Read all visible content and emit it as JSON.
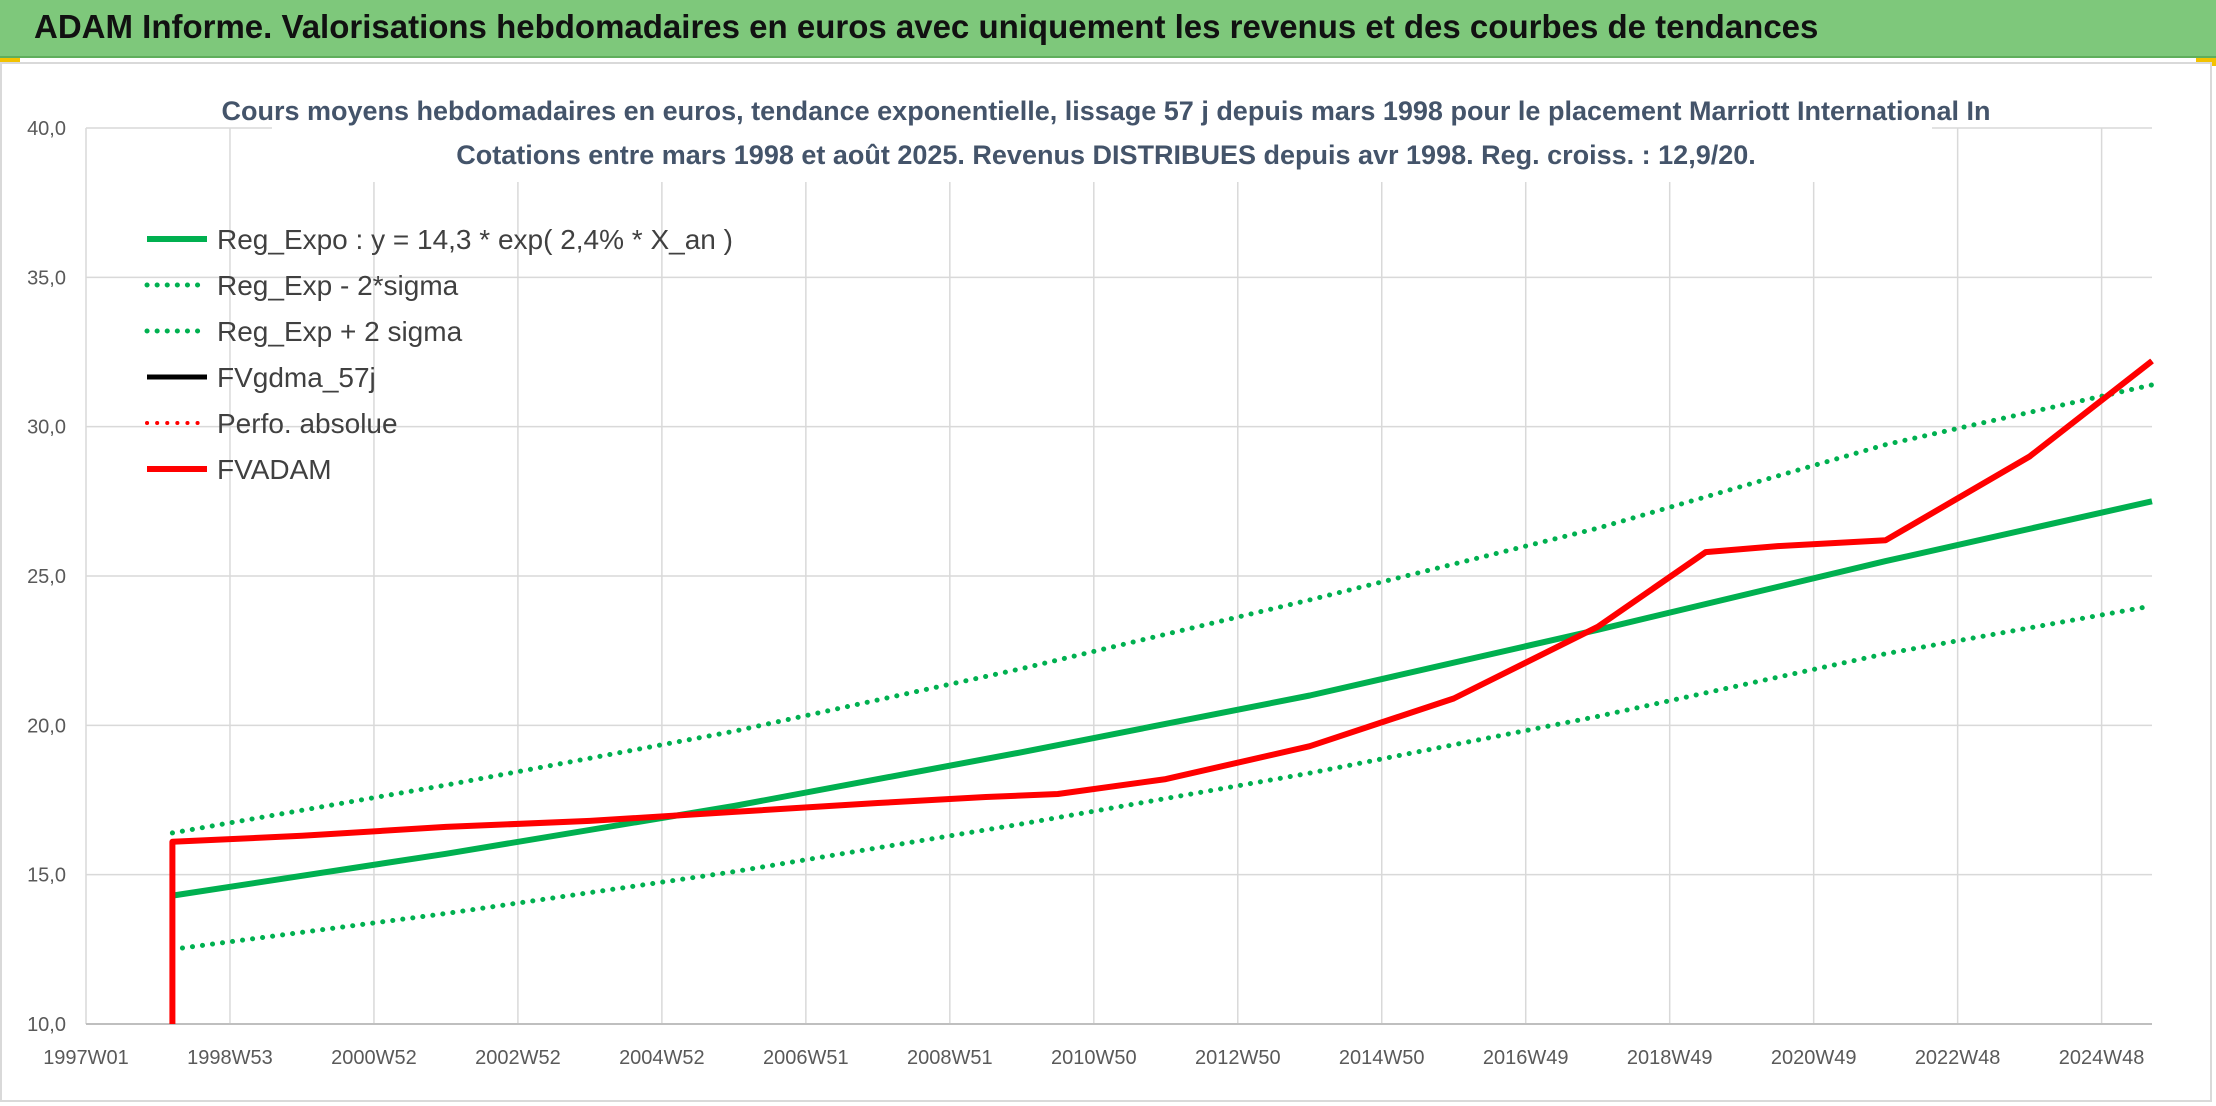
{
  "header": {
    "title": "ADAM Informe. Valorisations hebdomadaires en euros avec uniquement les revenus et des courbes de tendances"
  },
  "chart_data": {
    "type": "line",
    "title_lines": [
      "Cours moyens hebdomadaires en euros, tendance exponentielle, lissage 57 j depuis mars 1998 pour le placement Marriott International In",
      "Cotations entre mars 1998 et août 2025. Revenus DISTRIBUES depuis avr 1998. Reg. croiss. : 12,9/20."
    ],
    "xlabel": "",
    "ylabel": "",
    "x_ticks": [
      "1997W01",
      "1998W53",
      "2000W52",
      "2002W52",
      "2004W52",
      "2006W51",
      "2008W51",
      "2010W50",
      "2012W50",
      "2014W50",
      "2016W49",
      "2018W49",
      "2020W49",
      "2022W48",
      "2024W48"
    ],
    "x_range": [
      1997.0,
      2025.7
    ],
    "y_ticks": [
      "10,0",
      "15,0",
      "20,0",
      "25,0",
      "30,0",
      "35,0",
      "40,0"
    ],
    "ylim": [
      10,
      40
    ],
    "grid": true,
    "legend_position": "top-left",
    "series": [
      {
        "name": "Reg_Expo : y = 14,3 * exp( 2,4% *  X_an )",
        "color": "#00b050",
        "style": "solid",
        "width": 6,
        "x": [
          1998.2,
          2002.0,
          2006.0,
          2010.0,
          2014.0,
          2018.0,
          2022.0,
          2025.7
        ],
        "y": [
          14.3,
          15.7,
          17.3,
          19.1,
          21.0,
          23.2,
          25.5,
          27.5
        ]
      },
      {
        "name": "Reg_Exp - 2*sigma",
        "color": "#00b050",
        "style": "dotted",
        "width": 5,
        "x": [
          1998.2,
          2002.0,
          2006.0,
          2010.0,
          2014.0,
          2018.0,
          2022.0,
          2025.7
        ],
        "y": [
          12.5,
          13.7,
          15.1,
          16.7,
          18.4,
          20.3,
          22.4,
          24.0
        ]
      },
      {
        "name": "Reg_Exp + 2 sigma",
        "color": "#00b050",
        "style": "dotted",
        "width": 5,
        "x": [
          1998.2,
          2002.0,
          2006.0,
          2010.0,
          2014.0,
          2018.0,
          2022.0,
          2025.7
        ],
        "y": [
          16.4,
          18.0,
          19.8,
          21.9,
          24.2,
          26.6,
          29.4,
          31.4
        ]
      },
      {
        "name": "FVgdma_57j",
        "color": "#000000",
        "style": "solid",
        "width": 5,
        "x": [
          1998.2,
          2000.0,
          2002.0,
          2004.0,
          2006.0,
          2008.0,
          2009.5,
          2010.5,
          2012.0,
          2014.0,
          2016.0,
          2018.0,
          2019.5,
          2020.5,
          2022.0,
          2024.0,
          2025.7
        ],
        "y": [
          16.1,
          16.3,
          16.6,
          16.8,
          17.1,
          17.4,
          17.6,
          17.7,
          18.2,
          19.3,
          20.9,
          23.3,
          25.8,
          26.0,
          26.2,
          29.0,
          32.2
        ]
      },
      {
        "name": "Perfo. absolue",
        "color": "#ff0000",
        "style": "dotted",
        "width": 4,
        "x": [],
        "y": []
      },
      {
        "name": "FVADAM",
        "color": "#ff0000",
        "style": "solid",
        "width": 6,
        "x": [
          1998.2,
          1998.2,
          2000.0,
          2002.0,
          2004.0,
          2006.0,
          2008.0,
          2009.5,
          2010.5,
          2012.0,
          2014.0,
          2016.0,
          2018.0,
          2019.5,
          2020.5,
          2022.0,
          2024.0,
          2025.7
        ],
        "y": [
          10.0,
          16.1,
          16.3,
          16.6,
          16.8,
          17.1,
          17.4,
          17.6,
          17.7,
          18.2,
          19.3,
          20.9,
          23.3,
          25.8,
          26.0,
          26.2,
          29.0,
          32.2
        ]
      }
    ]
  }
}
